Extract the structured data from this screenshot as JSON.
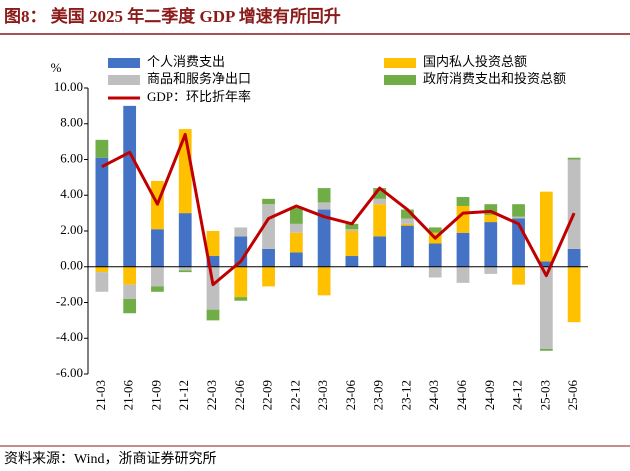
{
  "chart_data": {
    "type": "bar",
    "stacked": true,
    "title": "图8：  美国 2025 年二季度 GDP 增速有所回升",
    "y_label": "%",
    "source": "资料来源：Wind，浙商证券研究所",
    "categories": [
      "21-03",
      "21-06",
      "21-09",
      "21-12",
      "22-03",
      "22-06",
      "22-09",
      "22-12",
      "23-03",
      "23-06",
      "23-09",
      "23-12",
      "24-03",
      "24-06",
      "24-09",
      "24-12",
      "25-03",
      "25-06"
    ],
    "series": [
      {
        "name": "个人消费支出",
        "color": "#4472c4",
        "values": [
          6.1,
          9.0,
          2.1,
          3.0,
          0.6,
          1.7,
          1.0,
          0.8,
          3.2,
          0.6,
          1.7,
          2.3,
          1.3,
          1.9,
          2.5,
          2.7,
          0.3,
          1.0
        ]
      },
      {
        "name": "国内私人投资总额",
        "color": "#ffc000",
        "values": [
          -0.3,
          -1.0,
          2.7,
          4.7,
          1.4,
          -1.7,
          -1.1,
          1.1,
          -1.6,
          1.4,
          1.8,
          0.1,
          0.6,
          1.5,
          0.4,
          -1.0,
          3.9,
          -3.1
        ]
      },
      {
        "name": "商品和服务净出口",
        "color": "#bfbfbf",
        "values": [
          -1.1,
          -0.8,
          -1.1,
          -0.2,
          -2.4,
          0.5,
          2.5,
          0.5,
          0.4,
          0.1,
          0.3,
          0.3,
          -0.6,
          -0.9,
          -0.4,
          0.1,
          -4.6,
          5.0
        ]
      },
      {
        "name": "政府消费支出和投资总额",
        "color": "#70ad47",
        "values": [
          1.0,
          -0.8,
          -0.3,
          -0.1,
          -0.6,
          -0.2,
          0.3,
          0.9,
          0.8,
          0.3,
          0.6,
          0.5,
          0.3,
          0.5,
          0.6,
          0.7,
          -0.1,
          0.1
        ]
      },
      {
        "name": "GDP：环比折年率",
        "color": "#c00000",
        "type": "line",
        "values": [
          5.6,
          6.4,
          3.5,
          7.4,
          -1.0,
          0.3,
          2.7,
          3.4,
          2.8,
          2.4,
          4.4,
          3.2,
          1.6,
          3.0,
          3.1,
          2.4,
          -0.5,
          3.0
        ]
      }
    ],
    "ylim": [
      -6,
      10
    ],
    "yticks": [
      {
        "value": -6,
        "label": "-6.00"
      },
      {
        "value": -4,
        "label": "-4.00"
      },
      {
        "value": -2,
        "label": "-2.00"
      },
      {
        "value": 0,
        "label": "0.00"
      },
      {
        "value": 2,
        "label": "2.00"
      },
      {
        "value": 4,
        "label": "4.00"
      },
      {
        "value": 6,
        "label": "6.00"
      },
      {
        "value": 8,
        "label": "8.00"
      },
      {
        "value": 10,
        "label": "10.00"
      }
    ],
    "grid": false
  }
}
